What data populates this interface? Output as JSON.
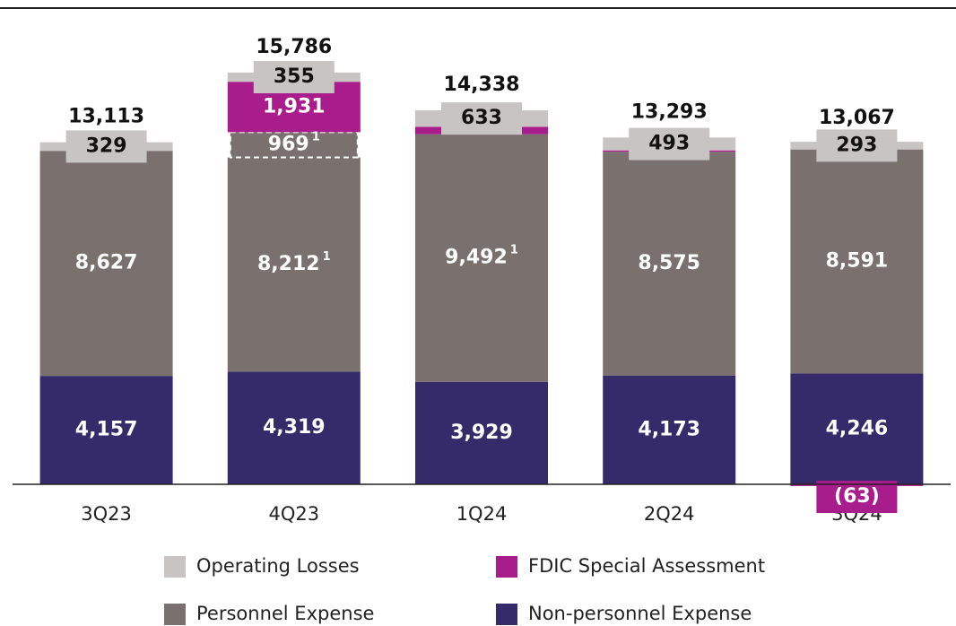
{
  "chart_data": {
    "type": "stacked_bar",
    "categories": [
      "3Q23",
      "4Q23",
      "1Q24",
      "2Q24",
      "3Q24"
    ],
    "series": [
      {
        "name": "Non-personnel Expense",
        "color": "#352a6a",
        "values": [
          4157,
          4319,
          3929,
          4173,
          4246
        ],
        "value_labels": [
          "4,157",
          "4,319",
          "3,929",
          "4,173",
          "4,246"
        ]
      },
      {
        "name": "Personnel Expense",
        "color": "#7a716f",
        "values": [
          8627,
          8212,
          9492,
          8575,
          8591
        ],
        "value_labels": [
          "8,627",
          "8,212",
          "9,492",
          "8,575",
          "8,591"
        ],
        "superscripts": [
          null,
          "1",
          "1",
          null,
          null
        ]
      },
      {
        "color": "#7a716f",
        "dashed": true,
        "values": [
          null,
          969,
          null,
          null,
          null
        ],
        "superscripts": [
          null,
          "1",
          null,
          null,
          null
        ]
      },
      {
        "name": "FDIC Special Assessment",
        "color": "#a81c8c",
        "values": [
          null,
          1931,
          284,
          52,
          -63
        ],
        "value_labels": [
          null,
          "1,931",
          null,
          null,
          "(63)"
        ]
      },
      {
        "name": "Operating Losses",
        "color": "#c9c4c4",
        "values": [
          329,
          355,
          633,
          493,
          293
        ]
      }
    ],
    "totals": [
      13113,
      15786,
      14338,
      13293,
      13067
    ],
    "total_labels": [
      "13,113",
      "15,786",
      "14,338",
      "13,293",
      "13,067"
    ],
    "ylim": [
      -600,
      17500
    ]
  }
}
